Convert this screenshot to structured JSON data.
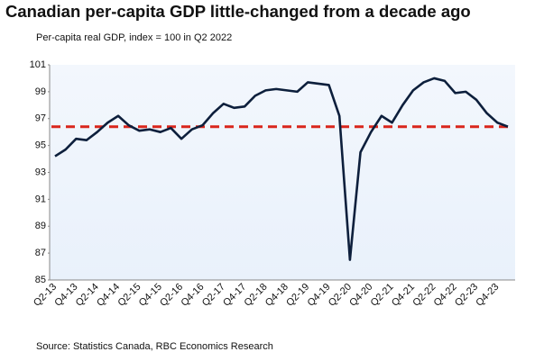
{
  "chart_data": {
    "type": "line",
    "title": "Canadian per-capita GDP little-changed from a decade ago",
    "subtitle": "Per-capita real GDP, index = 100 in Q2 2022",
    "source": "Source: Statistics Canada, RBC Economics Research",
    "categories": [
      "Q2-13",
      null,
      "Q4-13",
      null,
      "Q2-14",
      null,
      "Q4-14",
      null,
      "Q2-15",
      null,
      "Q4-15",
      null,
      "Q2-16",
      null,
      "Q4-16",
      null,
      "Q2-17",
      null,
      "Q4-17",
      null,
      "Q2-18",
      null,
      "Q4-18",
      null,
      "Q2-19",
      null,
      "Q4-19",
      null,
      "Q2-20",
      null,
      "Q4-20",
      null,
      "Q2-21",
      null,
      "Q4-21",
      null,
      "Q2-22",
      null,
      "Q4-22",
      null,
      "Q2-23",
      null,
      "Q4-23",
      null
    ],
    "values": [
      94.2,
      94.7,
      95.5,
      95.4,
      96.0,
      96.7,
      97.2,
      96.5,
      96.1,
      96.2,
      96.0,
      96.3,
      95.5,
      96.2,
      96.5,
      97.4,
      98.1,
      97.8,
      97.9,
      98.7,
      99.1,
      99.2,
      99.1,
      99.0,
      99.7,
      99.6,
      99.5,
      97.2,
      86.5,
      94.5,
      96.0,
      97.2,
      96.7,
      98.0,
      99.1,
      99.7,
      100.0,
      99.8,
      98.9,
      99.0,
      98.4,
      97.4,
      96.7,
      96.4
    ],
    "color": "#0d1f3c",
    "reference_value": 96.4,
    "reference_color": "#d9261c",
    "ylim": [
      85,
      101
    ],
    "yticks": [
      85,
      87,
      89,
      91,
      93,
      95,
      97,
      99,
      101
    ]
  }
}
